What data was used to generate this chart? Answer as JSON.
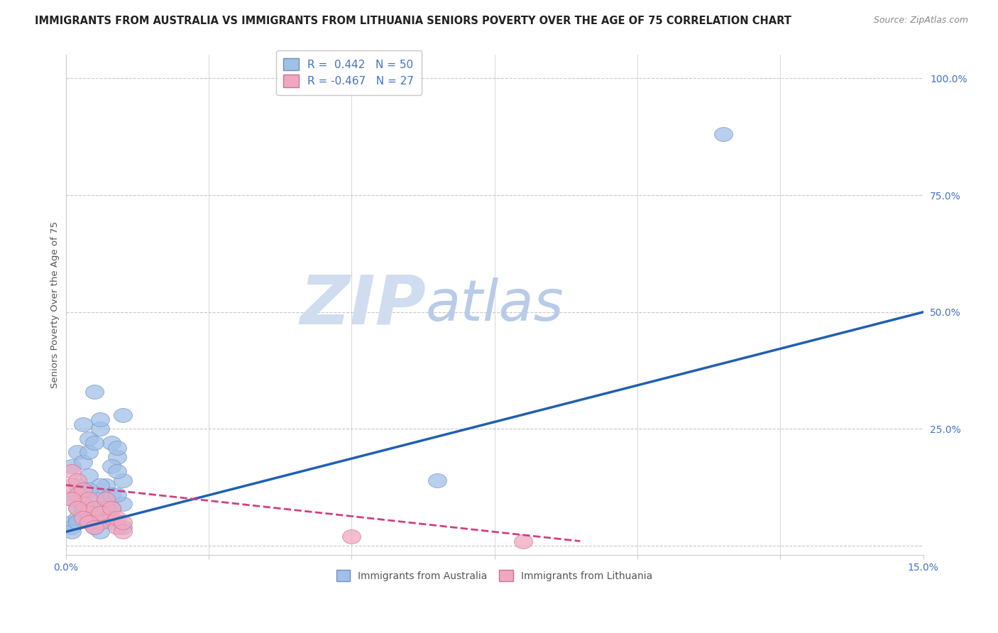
{
  "title": "IMMIGRANTS FROM AUSTRALIA VS IMMIGRANTS FROM LITHUANIA SENIORS POVERTY OVER THE AGE OF 75 CORRELATION CHART",
  "source": "Source: ZipAtlas.com",
  "ylabel": "Seniors Poverty Over the Age of 75",
  "watermark_zip": "ZIP",
  "watermark_atlas": "atlas",
  "legend_label_aus": "R =  0.442   N = 50",
  "legend_label_lit": "R = -0.467   N = 27",
  "xlim": [
    0.0,
    0.15
  ],
  "ylim": [
    -0.02,
    1.05
  ],
  "yticks": [
    0.0,
    0.25,
    0.5,
    0.75,
    1.0
  ],
  "ytick_labels": [
    "",
    "25.0%",
    "50.0%",
    "75.0%",
    "100.0%"
  ],
  "xtick_labels": [
    "0.0%",
    "",
    "",
    "",
    "",
    "",
    "15.0%"
  ],
  "grid_color": "#c8c8c8",
  "background_color": "#ffffff",
  "aus_line_color": "#2060b0",
  "lit_line_color": "#d04080",
  "aus_dot_color": "#a0c0e8",
  "lit_dot_color": "#f0a8c0",
  "aus_dot_edge": "#7090c0",
  "lit_dot_edge": "#d07090",
  "title_fontsize": 10.5,
  "source_fontsize": 9,
  "watermark_fontsize_zip": 70,
  "watermark_fontsize_atlas": 58,
  "watermark_color_zip": "#d0ddf0",
  "watermark_color_atlas": "#b8cce8",
  "axis_label_color": "#4472c4",
  "ylabel_color": "#555555",
  "legend_text_color": "#4472c4",
  "bottom_legend_color": "#555555",
  "aus_line_y0": 0.03,
  "aus_line_y1": 0.5,
  "lit_line_x0": 0.0,
  "lit_line_x1": 0.09,
  "lit_line_y0": 0.13,
  "lit_line_y1": 0.01,
  "aus_points_x": [
    0.001,
    0.002,
    0.003,
    0.004,
    0.005,
    0.006,
    0.007,
    0.008,
    0.009,
    0.01,
    0.001,
    0.002,
    0.003,
    0.004,
    0.005,
    0.006,
    0.007,
    0.008,
    0.009,
    0.01,
    0.001,
    0.002,
    0.003,
    0.004,
    0.005,
    0.006,
    0.007,
    0.008,
    0.009,
    0.01,
    0.001,
    0.002,
    0.003,
    0.004,
    0.005,
    0.006,
    0.007,
    0.008,
    0.009,
    0.01,
    0.001,
    0.002,
    0.003,
    0.004,
    0.005,
    0.006,
    0.007,
    0.008,
    0.115,
    0.065
  ],
  "aus_points_y": [
    0.17,
    0.2,
    0.26,
    0.23,
    0.33,
    0.25,
    0.1,
    0.22,
    0.19,
    0.28,
    0.1,
    0.13,
    0.18,
    0.2,
    0.22,
    0.27,
    0.13,
    0.17,
    0.21,
    0.14,
    0.05,
    0.08,
    0.12,
    0.15,
    0.1,
    0.13,
    0.08,
    0.11,
    0.16,
    0.09,
    0.04,
    0.06,
    0.09,
    0.12,
    0.07,
    0.05,
    0.06,
    0.08,
    0.11,
    0.04,
    0.03,
    0.05,
    0.08,
    0.06,
    0.04,
    0.03,
    0.07,
    0.05,
    0.88,
    0.14
  ],
  "lit_points_x": [
    0.001,
    0.002,
    0.003,
    0.004,
    0.005,
    0.006,
    0.007,
    0.008,
    0.009,
    0.01,
    0.001,
    0.002,
    0.003,
    0.004,
    0.005,
    0.006,
    0.007,
    0.008,
    0.009,
    0.01,
    0.001,
    0.002,
    0.003,
    0.004,
    0.005,
    0.05,
    0.08
  ],
  "lit_points_y": [
    0.13,
    0.11,
    0.09,
    0.07,
    0.06,
    0.05,
    0.08,
    0.06,
    0.04,
    0.03,
    0.16,
    0.14,
    0.12,
    0.1,
    0.08,
    0.07,
    0.1,
    0.08,
    0.06,
    0.05,
    0.1,
    0.08,
    0.06,
    0.05,
    0.04,
    0.02,
    0.01
  ]
}
